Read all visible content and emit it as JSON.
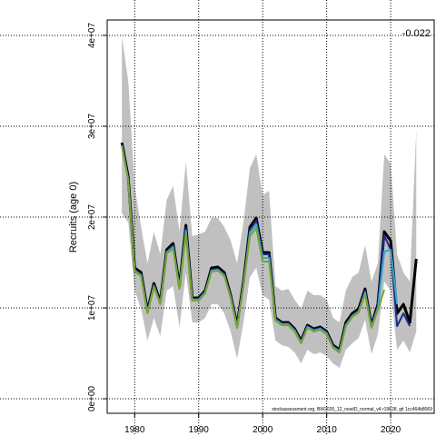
{
  "chart_data": {
    "type": "line",
    "y_label": "Recruits (age 0)",
    "annotation": "-0.022",
    "footer": "stockassessment.org, BW2026_12_newID_normal_v4 r19628, git 1cc464b8069",
    "x": [
      1978,
      1979,
      1980,
      1981,
      1982,
      1983,
      1984,
      1985,
      1986,
      1987,
      1988,
      1989,
      1990,
      1991,
      1992,
      1993,
      1994,
      1995,
      1996,
      1997,
      1998,
      1999,
      2000,
      2001,
      2002,
      2003,
      2004,
      2005,
      2006,
      2007,
      2008,
      2009,
      2010,
      2011,
      2012,
      2013,
      2014,
      2015,
      2016,
      2017,
      2018,
      2019,
      2020,
      2021,
      2022,
      2023,
      2024
    ],
    "xlim": [
      1975.7,
      2026.8
    ],
    "ylim": [
      -1600000,
      41700000
    ],
    "xticks": [
      1980,
      1990,
      2000,
      2010,
      2020
    ],
    "yticks": [
      {
        "value": 0,
        "label": "0e+00"
      },
      {
        "value": 10000000,
        "label": "1e+07"
      },
      {
        "value": 20000000,
        "label": "2e+07"
      },
      {
        "value": 30000000,
        "label": "3e+07"
      },
      {
        "value": 40000000,
        "label": "4e+07"
      }
    ],
    "grid": true,
    "band": {
      "color": "#c0c0c0",
      "upper": [
        39900000,
        34900000,
        23400000,
        18900000,
        14900000,
        18400000,
        15900000,
        21900000,
        23400000,
        18400000,
        26100000,
        17900000,
        18100000,
        18400000,
        19900000,
        19900000,
        18900000,
        17400000,
        14900000,
        19400000,
        25400000,
        26900000,
        22400000,
        22900000,
        12400000,
        11900000,
        12100000,
        10900000,
        9900000,
        11900000,
        11400000,
        11400000,
        10900000,
        8900000,
        8400000,
        11900000,
        13400000,
        13900000,
        16900000,
        12900000,
        14900000,
        26900000,
        25900000,
        15900000,
        13900000,
        12900000,
        29600000
      ],
      "lower": [
        20400000,
        19400000,
        11900000,
        9900000,
        6400000,
        8900000,
        6900000,
        11900000,
        12400000,
        7900000,
        13900000,
        8400000,
        8400000,
        8900000,
        10400000,
        10400000,
        9400000,
        7400000,
        4400000,
        8400000,
        13400000,
        14400000,
        11400000,
        10900000,
        6400000,
        5900000,
        5700000,
        5100000,
        3900000,
        5400000,
        4900000,
        5100000,
        4700000,
        3900000,
        3400000,
        5400000,
        6100000,
        6700000,
        8700000,
        4900000,
        7100000,
        12900000,
        11900000,
        5400000,
        6400000,
        5100000,
        7400000
      ]
    },
    "series": [
      {
        "color": "#000000",
        "values": [
          28200000,
          24400000,
          14400000,
          13900000,
          9700000,
          12700000,
          10700000,
          16400000,
          17100000,
          12400000,
          19100000,
          11100000,
          11100000,
          11900000,
          14400000,
          14500000,
          13900000,
          11400000,
          8100000,
          12900000,
          18900000,
          19900000,
          16100000,
          16100000,
          8900000,
          8400000,
          8400000,
          7700000,
          6400000,
          8100000,
          7700000,
          7900000,
          7400000,
          5900000,
          5400000,
          8400000,
          9400000,
          9900000,
          12100000,
          8100000,
          10400000,
          18400000,
          17400000,
          9400000,
          10400000,
          8400000,
          15400000
        ]
      },
      {
        "color": "#1e2a8a",
        "values": [
          28000000,
          24200000,
          14200000,
          13700000,
          9600000,
          12500000,
          10600000,
          16200000,
          16900000,
          12300000,
          18800000,
          11000000,
          11000000,
          11800000,
          14200000,
          14300000,
          13700000,
          11300000,
          8000000,
          12700000,
          18600000,
          19600000,
          15900000,
          15900000,
          8800000,
          8300000,
          8300000,
          7600000,
          6300000,
          8000000,
          7600000,
          7800000,
          7300000,
          5800000,
          5300000,
          8200000,
          9200000,
          9700000,
          11900000,
          8000000,
          10200000,
          18000000,
          16400000,
          8000000,
          9400000,
          8000000,
          null
        ]
      },
      {
        "color": "#3aa6cc",
        "values": [
          27900000,
          24100000,
          14100000,
          13600000,
          9500000,
          12400000,
          10500000,
          16100000,
          16700000,
          12200000,
          18500000,
          10900000,
          10900000,
          11700000,
          14100000,
          14200000,
          13600000,
          11200000,
          7900000,
          12600000,
          18300000,
          19200000,
          15500000,
          15500000,
          8700000,
          8200000,
          8200000,
          7500000,
          6200000,
          7900000,
          7500000,
          7700000,
          7200000,
          5700000,
          5200000,
          8100000,
          9100000,
          9600000,
          11700000,
          7900000,
          10000000,
          16200000,
          16400000,
          10400000,
          null,
          null,
          null
        ]
      },
      {
        "color": "#78a332",
        "values": [
          27800000,
          24000000,
          14000000,
          13500000,
          9400000,
          12300000,
          10400000,
          16000000,
          16500000,
          12100000,
          18200000,
          10800000,
          10800000,
          11600000,
          14000000,
          14100000,
          13500000,
          11100000,
          7800000,
          12500000,
          17900000,
          18800000,
          15100000,
          15100000,
          8600000,
          8100000,
          8100000,
          7400000,
          6100000,
          7800000,
          7400000,
          7600000,
          7100000,
          5600000,
          5100000,
          8000000,
          9000000,
          9500000,
          11500000,
          7800000,
          9800000,
          12000000,
          null,
          null,
          null,
          null,
          null
        ]
      }
    ]
  }
}
